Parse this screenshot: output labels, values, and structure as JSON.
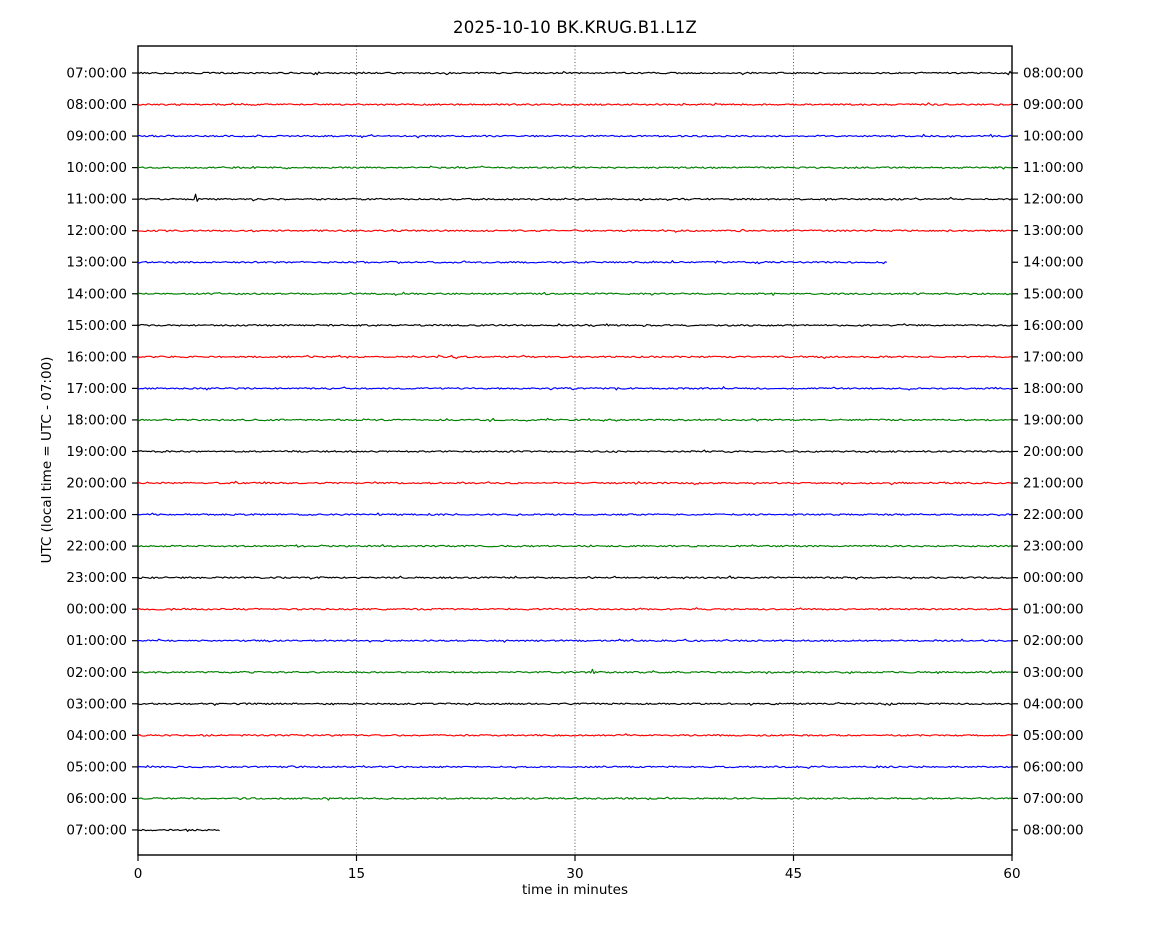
{
  "chart_data": {
    "type": "line",
    "subtype": "seismogram-helicorder-dayplot",
    "title": "2025-10-10 BK.KRUG.B1.L1Z",
    "xlabel": "time in minutes",
    "ylabel": "UTC (local time = UTC - 07:00)",
    "xlim": [
      0,
      60
    ],
    "x_ticks": [
      0,
      15,
      30,
      45,
      60
    ],
    "grid": {
      "vertical_dotted_at": [
        15,
        30,
        45
      ]
    },
    "color_cycle": [
      "#000000",
      "#ff0000",
      "#0000ff",
      "#008000"
    ],
    "legend": "none",
    "rows": [
      {
        "utc_start": "07:00:00",
        "utc_end": "08:00:00",
        "color": "#000000",
        "start_min": 0,
        "end_min": 60,
        "events": []
      },
      {
        "utc_start": "08:00:00",
        "utc_end": "09:00:00",
        "color": "#ff0000",
        "start_min": 0,
        "end_min": 60,
        "events": []
      },
      {
        "utc_start": "09:00:00",
        "utc_end": "10:00:00",
        "color": "#0000ff",
        "start_min": 0,
        "end_min": 60,
        "events": []
      },
      {
        "utc_start": "10:00:00",
        "utc_end": "11:00:00",
        "color": "#008000",
        "start_min": 0,
        "end_min": 60,
        "events": []
      },
      {
        "utc_start": "11:00:00",
        "utc_end": "12:00:00",
        "color": "#000000",
        "start_min": 0,
        "end_min": 60,
        "events": [
          {
            "min": 3.9,
            "amplitude": 5
          }
        ]
      },
      {
        "utc_start": "12:00:00",
        "utc_end": "13:00:00",
        "color": "#ff0000",
        "start_min": 0,
        "end_min": 60,
        "events": []
      },
      {
        "utc_start": "13:00:00",
        "utc_end": "14:00:00",
        "color": "#0000ff",
        "start_min": 0,
        "end_min": 51.5,
        "events": []
      },
      {
        "utc_start": "14:00:00",
        "utc_end": "15:00:00",
        "color": "#008000",
        "start_min": 0,
        "end_min": 60,
        "events": []
      },
      {
        "utc_start": "15:00:00",
        "utc_end": "16:00:00",
        "color": "#000000",
        "start_min": 0,
        "end_min": 60,
        "events": []
      },
      {
        "utc_start": "16:00:00",
        "utc_end": "17:00:00",
        "color": "#ff0000",
        "start_min": 0,
        "end_min": 60,
        "events": []
      },
      {
        "utc_start": "17:00:00",
        "utc_end": "18:00:00",
        "color": "#0000ff",
        "start_min": 0,
        "end_min": 60,
        "events": []
      },
      {
        "utc_start": "18:00:00",
        "utc_end": "19:00:00",
        "color": "#008000",
        "start_min": 0,
        "end_min": 60,
        "events": [
          {
            "min": 31.0,
            "amplitude": 1.3
          }
        ]
      },
      {
        "utc_start": "19:00:00",
        "utc_end": "20:00:00",
        "color": "#000000",
        "start_min": 0,
        "end_min": 60,
        "events": []
      },
      {
        "utc_start": "20:00:00",
        "utc_end": "21:00:00",
        "color": "#ff0000",
        "start_min": 0,
        "end_min": 60,
        "events": []
      },
      {
        "utc_start": "21:00:00",
        "utc_end": "22:00:00",
        "color": "#0000ff",
        "start_min": 0,
        "end_min": 60,
        "events": []
      },
      {
        "utc_start": "22:00:00",
        "utc_end": "23:00:00",
        "color": "#008000",
        "start_min": 0,
        "end_min": 60,
        "events": []
      },
      {
        "utc_start": "23:00:00",
        "utc_end": "00:00:00",
        "color": "#000000",
        "start_min": 0,
        "end_min": 60,
        "events": []
      },
      {
        "utc_start": "00:00:00",
        "utc_end": "01:00:00",
        "color": "#ff0000",
        "start_min": 0,
        "end_min": 60,
        "events": []
      },
      {
        "utc_start": "01:00:00",
        "utc_end": "02:00:00",
        "color": "#0000ff",
        "start_min": 0,
        "end_min": 60,
        "events": []
      },
      {
        "utc_start": "02:00:00",
        "utc_end": "03:00:00",
        "color": "#008000",
        "start_min": 0,
        "end_min": 60,
        "events": [
          {
            "min": 31.2,
            "amplitude": 3
          }
        ]
      },
      {
        "utc_start": "03:00:00",
        "utc_end": "04:00:00",
        "color": "#000000",
        "start_min": 0,
        "end_min": 60,
        "events": []
      },
      {
        "utc_start": "04:00:00",
        "utc_end": "05:00:00",
        "color": "#ff0000",
        "start_min": 0,
        "end_min": 60,
        "events": []
      },
      {
        "utc_start": "05:00:00",
        "utc_end": "06:00:00",
        "color": "#0000ff",
        "start_min": 0,
        "end_min": 60,
        "events": []
      },
      {
        "utc_start": "06:00:00",
        "utc_end": "07:00:00",
        "color": "#008000",
        "start_min": 0,
        "end_min": 60,
        "events": []
      },
      {
        "utc_start": "07:00:00",
        "utc_end": "08:00:00",
        "color": "#000000",
        "start_min": 0,
        "end_min": 5.7,
        "events": []
      }
    ]
  }
}
